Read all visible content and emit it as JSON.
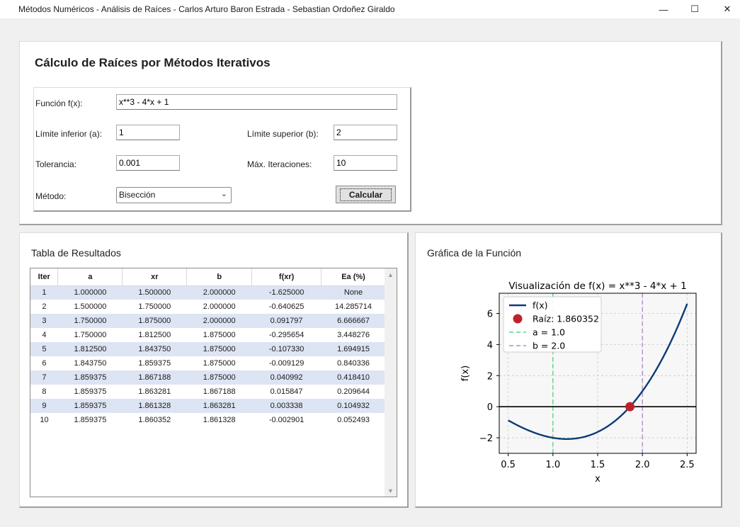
{
  "window": {
    "title": "Métodos Numéricos - Análisis de Raíces - Carlos Arturo Baron Estrada - Sebastian Ordoñez Giraldo",
    "minimize": "—",
    "maximize": "☐",
    "close": "✕"
  },
  "form": {
    "heading": "Cálculo de Raíces por Métodos Iterativos",
    "function_label": "Función f(x):",
    "function_value": "x**3 - 4*x + 1",
    "lower_label": "Límite inferior (a):",
    "lower_value": "1",
    "upper_label": "Límite superior (b):",
    "upper_value": "2",
    "tol_label": "Tolerancia:",
    "tol_value": "0.001",
    "maxit_label": "Máx. Iteraciones:",
    "maxit_value": "10",
    "method_label": "Método:",
    "method_value": "Bisección",
    "calc_label": "Calcular"
  },
  "results": {
    "title": "Tabla de Resultados",
    "columns": [
      "Iter",
      "a",
      "xr",
      "b",
      "f(xr)",
      "Ea (%)"
    ],
    "rows": [
      [
        "1",
        "1.000000",
        "1.500000",
        "2.000000",
        "-1.625000",
        "None"
      ],
      [
        "2",
        "1.500000",
        "1.750000",
        "2.000000",
        "-0.640625",
        "14.285714"
      ],
      [
        "3",
        "1.750000",
        "1.875000",
        "2.000000",
        "0.091797",
        "6.666667"
      ],
      [
        "4",
        "1.750000",
        "1.812500",
        "1.875000",
        "-0.295654",
        "3.448276"
      ],
      [
        "5",
        "1.812500",
        "1.843750",
        "1.875000",
        "-0.107330",
        "1.694915"
      ],
      [
        "6",
        "1.843750",
        "1.859375",
        "1.875000",
        "-0.009129",
        "0.840336"
      ],
      [
        "7",
        "1.859375",
        "1.867188",
        "1.875000",
        "0.040992",
        "0.418410"
      ],
      [
        "8",
        "1.859375",
        "1.863281",
        "1.867188",
        "0.015847",
        "0.209644"
      ],
      [
        "9",
        "1.859375",
        "1.861328",
        "1.863281",
        "0.003338",
        "0.104932"
      ],
      [
        "10",
        "1.859375",
        "1.860352",
        "1.861328",
        "-0.002901",
        "0.052493"
      ]
    ],
    "scroll_up": "▲",
    "scroll_down": "▼"
  },
  "graph": {
    "panel_title": "Gráfica de la Función"
  },
  "chart_data": {
    "type": "line",
    "title": "Visualización de f(x) = x**3 - 4*x + 1",
    "xlabel": "x",
    "ylabel": "f(x)",
    "xlim": [
      0.4,
      2.6
    ],
    "ylim": [
      -3.0,
      7.3
    ],
    "xticks": [
      0.5,
      1.0,
      1.5,
      2.0,
      2.5
    ],
    "xtick_labels": [
      "0.5",
      "1.0",
      "1.5",
      "2.0",
      "2.5"
    ],
    "yticks": [
      -2,
      0,
      2,
      4,
      6
    ],
    "ytick_labels": [
      "−2",
      "0",
      "2",
      "4",
      "6"
    ],
    "grid": true,
    "legend_position": "top-left",
    "function_x_range": [
      0.5,
      2.5
    ],
    "series": [
      {
        "name": "f(x)",
        "kind": "line",
        "color": "#0b3d75"
      },
      {
        "name": "Raíz: 1.860352",
        "kind": "point",
        "x": 1.860352,
        "y": 0,
        "color": "#c0202a"
      },
      {
        "name": "a = 1.0",
        "kind": "vline",
        "x": 1.0,
        "color": "#5fd08a"
      },
      {
        "name": "b = 2.0",
        "kind": "vline",
        "x": 2.0,
        "color": "#b48ad0"
      }
    ]
  }
}
